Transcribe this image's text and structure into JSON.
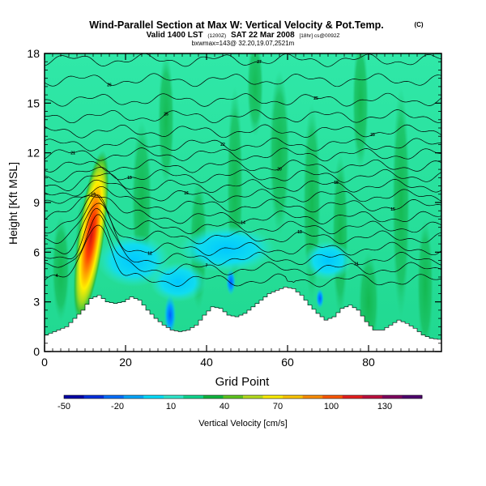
{
  "chart_data": {
    "type": "heatmap",
    "title": "Wind-Parallel Section at Max W: Vertical Velocity & Pot.Temp.",
    "title_units": "(C)",
    "subtitle_valid": "Valid 1400 LST",
    "subtitle_date_main": "SAT 22 Mar 2008",
    "subtitle_note_a": "(1200Z)",
    "subtitle_note_b": "[18hr] cs@0092Z",
    "subtitle_line2": "bxwmax=143@ 32.20,19.07,2521m",
    "xlabel": "Grid Point",
    "ylabel": "Height [Kft MSL]",
    "xlim": [
      0,
      98
    ],
    "ylim": [
      0,
      18
    ],
    "xticks": [
      "0",
      "20",
      "40",
      "60",
      "80"
    ],
    "yticks": [
      "0",
      "3",
      "6",
      "9",
      "12",
      "15",
      "18"
    ],
    "colorbar": {
      "label": "Vertical Velocity [cm/s]",
      "tick_labels": [
        "-50",
        "-20",
        "10",
        "40",
        "70",
        "100",
        "130"
      ],
      "colors": [
        "#0000a8",
        "#0030e0",
        "#0070ff",
        "#00a8ff",
        "#00e0ff",
        "#30ecd0",
        "#10d890",
        "#10b840",
        "#60c820",
        "#b8e020",
        "#fff000",
        "#ffc800",
        "#ff9000",
        "#ff5800",
        "#e82020",
        "#c01040",
        "#800060",
        "#500070"
      ]
    },
    "terrain_heights_kft": [
      [
        0,
        1
      ],
      [
        2,
        1.2
      ],
      [
        5,
        1.5
      ],
      [
        7,
        2
      ],
      [
        9,
        2.5
      ],
      [
        11,
        3.2
      ],
      [
        13,
        3.4
      ],
      [
        15,
        3
      ],
      [
        17,
        2.9
      ],
      [
        19,
        3
      ],
      [
        21,
        3.3
      ],
      [
        23,
        3.1
      ],
      [
        25,
        2.5
      ],
      [
        27,
        2
      ],
      [
        29,
        1.6
      ],
      [
        31,
        1.3
      ],
      [
        33,
        1.2
      ],
      [
        35,
        1.3
      ],
      [
        37,
        1.6
      ],
      [
        39,
        2.2
      ],
      [
        41,
        2.7
      ],
      [
        43,
        2.6
      ],
      [
        45,
        2.2
      ],
      [
        47,
        2.1
      ],
      [
        49,
        2.3
      ],
      [
        51,
        2.7
      ],
      [
        53,
        3.1
      ],
      [
        55,
        3.5
      ],
      [
        57,
        3.7
      ],
      [
        59,
        3.9
      ],
      [
        61,
        3.8
      ],
      [
        63,
        3.4
      ],
      [
        65,
        2.8
      ],
      [
        67,
        2.3
      ],
      [
        69,
        1.9
      ],
      [
        71,
        2.1
      ],
      [
        73,
        2.6
      ],
      [
        75,
        2.8
      ],
      [
        77,
        2.5
      ],
      [
        79,
        1.8
      ],
      [
        81,
        1.3
      ],
      [
        83,
        1.3
      ],
      [
        85,
        1.6
      ],
      [
        87,
        1.9
      ],
      [
        89,
        1.7
      ],
      [
        91,
        1.4
      ],
      [
        93,
        1
      ],
      [
        95,
        0.8
      ],
      [
        98,
        0.7
      ]
    ],
    "updraft_max_cm_s": 143,
    "updraft_location_grid_point": 13,
    "updraft_location_height_kft": 8,
    "isentrope_base_heights_kft": [
      4.3,
      5.0,
      5.6,
      6.2,
      6.9,
      7.5,
      8.1,
      8.8,
      9.4,
      10.0,
      10.6,
      11.2,
      11.9,
      12.5,
      13.3,
      14.2,
      15.2,
      16.4,
      17.6
    ],
    "isentrope_labels": [
      "4",
      "7",
      "11",
      "12",
      "13",
      "13",
      "14",
      "15",
      "16",
      "18",
      "19",
      "20",
      "21",
      "22",
      "23",
      "25",
      "25",
      "26",
      "27"
    ]
  }
}
